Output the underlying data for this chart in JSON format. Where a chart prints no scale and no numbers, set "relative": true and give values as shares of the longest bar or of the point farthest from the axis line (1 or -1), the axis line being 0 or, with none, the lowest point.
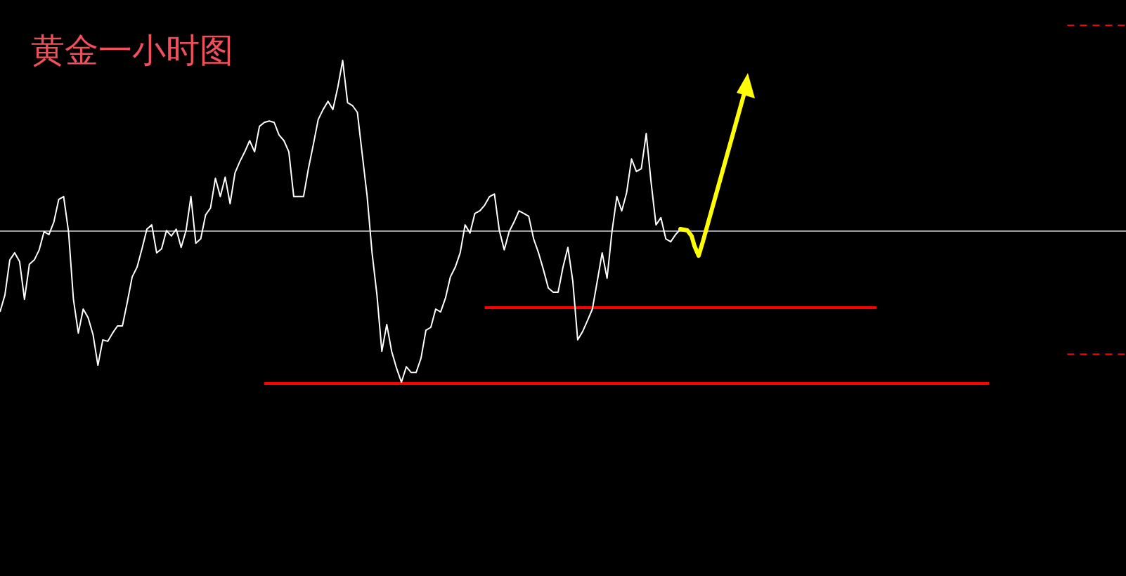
{
  "chart_data": {
    "type": "line",
    "title": "黄金一小时图",
    "relative": true,
    "legend": false,
    "marker": "none",
    "categories": [
      null,
      null,
      null,
      null,
      null,
      null,
      null,
      null,
      null,
      null,
      null,
      null,
      null,
      null,
      null,
      null,
      null,
      null,
      null,
      null,
      null,
      null,
      null,
      null,
      null,
      null,
      null,
      null,
      null,
      null,
      null,
      null,
      null,
      null,
      null,
      null,
      null,
      null,
      null,
      null,
      null,
      null,
      null,
      null,
      null,
      null,
      null,
      null,
      null,
      null,
      null,
      null,
      null,
      null,
      null,
      null,
      null,
      null,
      null,
      null,
      null,
      null,
      null,
      null,
      null,
      null,
      null,
      null,
      null,
      null,
      null,
      null,
      null,
      null,
      null,
      null,
      null,
      null,
      null,
      null,
      null,
      null,
      null,
      null,
      null,
      null,
      null,
      null,
      null,
      null,
      null,
      null,
      null,
      null,
      null,
      null,
      null,
      null,
      null,
      null,
      null,
      null,
      null,
      null,
      null,
      null,
      null,
      null,
      null,
      null,
      null,
      null,
      null,
      null,
      null,
      null,
      null,
      null,
      null,
      null,
      null,
      null,
      null,
      null,
      null,
      null,
      null,
      null,
      null,
      null,
      null,
      null,
      null,
      null,
      null,
      null,
      null,
      null,
      null,
      null,
      null,
      null,
      null,
      null,
      null,
      null,
      null,
      null,
      null,
      null,
      null,
      null,
      null,
      null,
      null,
      null,
      null,
      null,
      null,
      null,
      null,
      null,
      null,
      null,
      null,
      null,
      null,
      null,
      null,
      null,
      null,
      null,
      null,
      null,
      null,
      null,
      null,
      null,
      null,
      null,
      null,
      null,
      null,
      null,
      null,
      null,
      null,
      null,
      null,
      null,
      null,
      null,
      null,
      null,
      null,
      null,
      null,
      null,
      null,
      null,
      null,
      null,
      null,
      null,
      null,
      null,
      null,
      null,
      null,
      null,
      null,
      null,
      null,
      null,
      null,
      null,
      null,
      null,
      null,
      null,
      null,
      null,
      null,
      null,
      null,
      null,
      null,
      null,
      null,
      null,
      null
    ],
    "ref_lines": [
      {
        "axis": "y",
        "value": 0.427,
        "color": "#a0a0a8"
      }
    ],
    "series": [
      {
        "color": "#ffffff",
        "values": [
          0.2,
          0.247,
          0.345,
          0.365,
          0.341,
          0.235,
          0.333,
          0.345,
          0.373,
          0.424,
          0.416,
          0.451,
          0.514,
          0.522,
          0.424,
          0.235,
          0.141,
          0.208,
          0.184,
          0.137,
          0.051,
          0.122,
          0.118,
          0.141,
          0.161,
          0.161,
          0.227,
          0.298,
          0.325,
          0.376,
          0.431,
          0.443,
          0.365,
          0.376,
          0.427,
          0.412,
          0.431,
          0.38,
          0.427,
          0.522,
          0.392,
          0.404,
          0.471,
          0.49,
          0.573,
          0.522,
          0.576,
          0.502,
          0.588,
          0.62,
          0.647,
          0.678,
          0.647,
          0.718,
          0.729,
          0.733,
          0.729,
          0.694,
          0.678,
          0.647,
          0.522,
          0.522,
          0.522,
          0.6,
          0.667,
          0.737,
          0.765,
          0.788,
          0.765,
          0.827,
          0.902,
          0.784,
          0.776,
          0.757,
          0.639,
          0.522,
          0.365,
          0.247,
          0.09,
          0.165,
          0.09,
          0.043,
          0.004,
          0.047,
          0.031,
          0.031,
          0.071,
          0.149,
          0.157,
          0.208,
          0.2,
          0.239,
          0.298,
          0.325,
          0.365,
          0.443,
          0.42,
          0.475,
          0.482,
          0.498,
          0.522,
          0.529,
          0.427,
          0.373,
          0.424,
          0.451,
          0.482,
          0.475,
          0.467,
          0.404,
          0.365,
          0.318,
          0.267,
          0.255,
          0.255,
          0.325,
          0.38,
          0.286,
          0.122,
          0.145,
          0.176,
          0.208,
          0.286,
          0.365,
          0.294,
          0.424,
          0.522,
          0.482,
          0.533,
          0.627,
          0.592,
          0.6,
          0.698,
          0.561,
          0.443,
          0.463,
          0.404,
          0.396,
          0.416,
          0.431,
          0.427,
          null,
          null,
          null,
          null,
          null,
          null,
          null,
          null,
          null,
          null,
          null,
          null,
          null,
          null,
          null,
          null,
          null,
          null,
          null,
          null,
          null,
          null,
          null,
          null,
          null,
          null,
          null,
          null,
          null,
          null,
          null,
          null,
          null,
          null,
          null,
          null,
          null,
          null,
          null,
          null,
          null,
          null,
          null,
          null,
          null,
          null,
          null,
          null,
          null,
          null,
          null,
          null,
          null,
          null,
          null,
          null,
          null,
          null,
          null,
          null,
          null,
          null,
          null,
          null,
          null,
          null,
          null,
          null,
          null,
          null,
          null,
          null,
          null,
          null,
          null,
          null,
          null,
          null,
          null,
          null,
          null,
          null,
          null,
          null,
          null,
          null,
          null,
          null,
          null,
          null
        ]
      },
      {
        "color": "#ff0000",
        "values": [
          null,
          null,
          null,
          null,
          null,
          null,
          null,
          null,
          null,
          null,
          null,
          null,
          null,
          null,
          null,
          null,
          null,
          null,
          null,
          null,
          null,
          null,
          null,
          null,
          null,
          null,
          null,
          null,
          null,
          null,
          null,
          null,
          null,
          null,
          null,
          null,
          null,
          null,
          null,
          null,
          null,
          null,
          null,
          null,
          null,
          null,
          null,
          null,
          null,
          null,
          null,
          null,
          null,
          null,
          null,
          null,
          null,
          null,
          null,
          null,
          null,
          null,
          null,
          null,
          null,
          null,
          null,
          null,
          null,
          null,
          null,
          null,
          null,
          null,
          null,
          null,
          null,
          null,
          null,
          null,
          null,
          null,
          null,
          null,
          null,
          null,
          null,
          null,
          null,
          null,
          null,
          null,
          null,
          null,
          null,
          null,
          null,
          null,
          null,
          0.212,
          null,
          null,
          null,
          null,
          null,
          null,
          null,
          null,
          null,
          null,
          null,
          null,
          null,
          null,
          null,
          null,
          null,
          null,
          null,
          null,
          null,
          null,
          null,
          null,
          null,
          null,
          null,
          null,
          null,
          null,
          null,
          null,
          null,
          null,
          null,
          null,
          null,
          null,
          null,
          null,
          null,
          null,
          null,
          null,
          null,
          null,
          null,
          null,
          null,
          null,
          null,
          null,
          null,
          null,
          null,
          null,
          null,
          null,
          null,
          null,
          null,
          null,
          null,
          null,
          null,
          null,
          null,
          null,
          null,
          null,
          null,
          null,
          null,
          null,
          null,
          null,
          null,
          null,
          null,
          0.212,
          null,
          null,
          null,
          null,
          null,
          null,
          null,
          null,
          null,
          null,
          null,
          null,
          null,
          null,
          null,
          null,
          null,
          null,
          null,
          null,
          null,
          null,
          null,
          null,
          null,
          null,
          null,
          null,
          null,
          null,
          null,
          null,
          null,
          null,
          null,
          null,
          null,
          null,
          null,
          null,
          null,
          null,
          null,
          null,
          null,
          null,
          null,
          null,
          null,
          null,
          null
        ]
      },
      {
        "color": "#ff0000",
        "values": [
          null,
          null,
          null,
          null,
          null,
          null,
          null,
          null,
          null,
          null,
          null,
          null,
          null,
          null,
          null,
          null,
          null,
          null,
          null,
          null,
          null,
          null,
          null,
          null,
          null,
          null,
          null,
          null,
          null,
          null,
          null,
          null,
          null,
          null,
          null,
          null,
          null,
          null,
          null,
          null,
          null,
          null,
          null,
          null,
          null,
          null,
          null,
          null,
          null,
          null,
          null,
          null,
          null,
          null,
          0,
          null,
          null,
          null,
          null,
          null,
          null,
          null,
          null,
          null,
          null,
          null,
          null,
          null,
          null,
          null,
          null,
          null,
          null,
          null,
          null,
          null,
          null,
          null,
          null,
          null,
          null,
          null,
          null,
          null,
          null,
          null,
          null,
          null,
          null,
          null,
          null,
          null,
          null,
          null,
          null,
          null,
          null,
          null,
          null,
          null,
          null,
          null,
          null,
          null,
          null,
          null,
          null,
          null,
          null,
          null,
          null,
          null,
          null,
          null,
          null,
          null,
          null,
          null,
          null,
          null,
          null,
          null,
          null,
          null,
          null,
          null,
          null,
          null,
          null,
          null,
          null,
          null,
          null,
          null,
          null,
          null,
          null,
          null,
          null,
          null,
          null,
          null,
          null,
          null,
          null,
          null,
          null,
          null,
          null,
          null,
          null,
          null,
          null,
          null,
          null,
          null,
          null,
          null,
          null,
          null,
          null,
          null,
          null,
          null,
          null,
          null,
          null,
          null,
          null,
          null,
          null,
          null,
          null,
          null,
          null,
          null,
          null,
          null,
          null,
          null,
          null,
          null,
          null,
          null,
          null,
          null,
          null,
          null,
          null,
          null,
          null,
          null,
          null,
          null,
          null,
          null,
          null,
          null,
          null,
          null,
          null,
          null,
          0,
          null,
          null,
          null,
          null,
          null,
          null,
          null,
          null,
          null,
          null,
          null,
          null,
          null,
          null,
          null,
          null,
          null,
          null,
          null,
          null,
          null,
          null,
          null,
          null,
          null,
          null,
          null,
          null
        ]
      },
      {
        "color": "#ff0000",
        "line_style": "dashed",
        "values": [
          null,
          null,
          null,
          null,
          null,
          null,
          null,
          null,
          null,
          null,
          null,
          null,
          null,
          null,
          null,
          null,
          null,
          null,
          null,
          null,
          null,
          null,
          null,
          null,
          null,
          null,
          null,
          null,
          null,
          null,
          null,
          null,
          null,
          null,
          null,
          null,
          null,
          null,
          null,
          null,
          null,
          null,
          null,
          null,
          null,
          null,
          null,
          null,
          null,
          null,
          null,
          null,
          null,
          null,
          null,
          null,
          null,
          null,
          null,
          null,
          null,
          null,
          null,
          null,
          null,
          null,
          null,
          null,
          null,
          null,
          null,
          null,
          null,
          null,
          null,
          null,
          null,
          null,
          null,
          null,
          null,
          null,
          null,
          null,
          null,
          null,
          null,
          null,
          null,
          null,
          null,
          null,
          null,
          null,
          null,
          null,
          null,
          null,
          null,
          null,
          null,
          null,
          null,
          null,
          null,
          null,
          null,
          null,
          null,
          null,
          null,
          null,
          null,
          null,
          null,
          null,
          null,
          null,
          null,
          null,
          null,
          null,
          null,
          null,
          null,
          null,
          null,
          null,
          null,
          null,
          null,
          null,
          null,
          null,
          null,
          null,
          null,
          null,
          null,
          null,
          null,
          null,
          null,
          null,
          null,
          null,
          null,
          null,
          null,
          null,
          null,
          null,
          null,
          null,
          null,
          null,
          null,
          null,
          null,
          null,
          null,
          null,
          null,
          null,
          null,
          null,
          null,
          null,
          null,
          null,
          null,
          null,
          null,
          null,
          null,
          null,
          null,
          null,
          null,
          null,
          null,
          null,
          null,
          null,
          null,
          null,
          null,
          null,
          null,
          null,
          null,
          null,
          null,
          null,
          null,
          null,
          null,
          null,
          null,
          null,
          null,
          null,
          null,
          null,
          null,
          null,
          null,
          null,
          null,
          null,
          null,
          null,
          null,
          null,
          null,
          null,
          null,
          null,
          1,
          null,
          null,
          null,
          null,
          null,
          null,
          null,
          null,
          null,
          null,
          null,
          1
        ]
      },
      {
        "color": "#ff0000",
        "line_style": "dashed",
        "values": [
          null,
          null,
          null,
          null,
          null,
          null,
          null,
          null,
          null,
          null,
          null,
          null,
          null,
          null,
          null,
          null,
          null,
          null,
          null,
          null,
          null,
          null,
          null,
          null,
          null,
          null,
          null,
          null,
          null,
          null,
          null,
          null,
          null,
          null,
          null,
          null,
          null,
          null,
          null,
          null,
          null,
          null,
          null,
          null,
          null,
          null,
          null,
          null,
          null,
          null,
          null,
          null,
          null,
          null,
          null,
          null,
          null,
          null,
          null,
          null,
          null,
          null,
          null,
          null,
          null,
          null,
          null,
          null,
          null,
          null,
          null,
          null,
          null,
          null,
          null,
          null,
          null,
          null,
          null,
          null,
          null,
          null,
          null,
          null,
          null,
          null,
          null,
          null,
          null,
          null,
          null,
          null,
          null,
          null,
          null,
          null,
          null,
          null,
          null,
          null,
          null,
          null,
          null,
          null,
          null,
          null,
          null,
          null,
          null,
          null,
          null,
          null,
          null,
          null,
          null,
          null,
          null,
          null,
          null,
          null,
          null,
          null,
          null,
          null,
          null,
          null,
          null,
          null,
          null,
          null,
          null,
          null,
          null,
          null,
          null,
          null,
          null,
          null,
          null,
          null,
          null,
          null,
          null,
          null,
          null,
          null,
          null,
          null,
          null,
          null,
          null,
          null,
          null,
          null,
          null,
          null,
          null,
          null,
          null,
          null,
          null,
          null,
          null,
          null,
          null,
          null,
          null,
          null,
          null,
          null,
          null,
          null,
          null,
          null,
          null,
          null,
          null,
          null,
          null,
          null,
          null,
          null,
          null,
          null,
          null,
          null,
          null,
          null,
          null,
          null,
          null,
          null,
          null,
          null,
          null,
          null,
          null,
          null,
          null,
          null,
          null,
          null,
          null,
          null,
          null,
          null,
          null,
          null,
          null,
          null,
          null,
          null,
          null,
          null,
          null,
          null,
          null,
          null,
          0.082,
          null,
          null,
          null,
          null,
          null,
          null,
          null,
          null,
          null,
          null,
          null,
          0.082
        ]
      }
    ]
  }
}
